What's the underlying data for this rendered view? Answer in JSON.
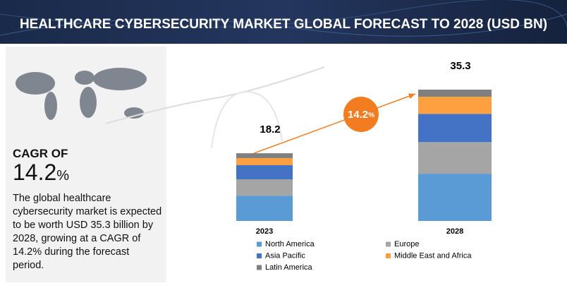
{
  "header": {
    "title": "HEALTHCARE CYBERSECURITY MARKET GLOBAL FORECAST TO 2028 (USD BN)"
  },
  "sidebar": {
    "cagr_label": "CAGR OF",
    "cagr_value": "14.2",
    "cagr_unit": "%",
    "description": "The global healthcare cybersecurity market is expected to be worth USD 35.3 billion by 2028, growing at a CAGR of 14.2% during the forecast period."
  },
  "chart_data": {
    "type": "bar",
    "stacked": true,
    "categories": [
      "2023",
      "2028"
    ],
    "series": [
      {
        "name": "North America",
        "color": "#5b9bd5",
        "values": [
          6.8,
          12.7
        ]
      },
      {
        "name": "Europe",
        "color": "#a5a5a5",
        "values": [
          4.4,
          8.5
        ]
      },
      {
        "name": "Asia Pacific",
        "color": "#4472c4",
        "values": [
          3.8,
          7.6
        ]
      },
      {
        "name": "Middle East and Africa",
        "color": "#ffa040",
        "values": [
          1.9,
          4.6
        ]
      },
      {
        "name": "Latin America",
        "color": "#7f7f7f",
        "values": [
          1.3,
          1.9
        ]
      }
    ],
    "totals": [
      18.2,
      35.3
    ],
    "growth_badge": {
      "value": "14.2",
      "unit": "%",
      "color": "#f47c20"
    }
  }
}
